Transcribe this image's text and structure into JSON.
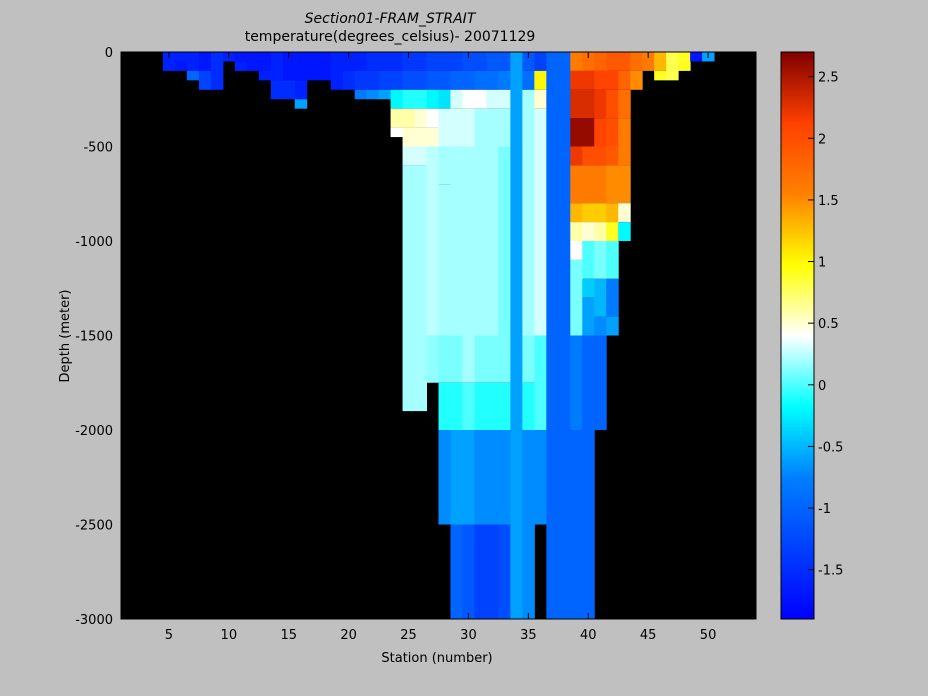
{
  "chart_data": {
    "type": "heatmap",
    "title": "Section01-FRAM_STRAIT",
    "subtitle": "temperature(degrees_celsius)- 20071129",
    "xlabel": "Station (number)",
    "ylabel": "Depth (meter)",
    "xlim": [
      1,
      54
    ],
    "ylim": [
      -3000,
      0
    ],
    "xticks": [
      5,
      10,
      15,
      20,
      25,
      30,
      35,
      40,
      45,
      50
    ],
    "yticks": [
      0,
      -500,
      -1000,
      -1500,
      -2000,
      -2500,
      -3000
    ],
    "colorbar": {
      "range": [
        -1.9,
        2.7
      ],
      "ticks": [
        2.5,
        2,
        1.5,
        1,
        0.5,
        0,
        -0.5,
        -1,
        -1.5
      ],
      "colormap": "jet"
    },
    "background_color": "#000000",
    "cell_height_m": 50,
    "columns": [
      {
        "x": 5,
        "top": 0,
        "segments": [
          [
            0,
            100,
            -1.6
          ]
        ]
      },
      {
        "x": 6,
        "top": 0,
        "segments": [
          [
            0,
            50,
            -1.6
          ],
          [
            50,
            100,
            -1.7
          ]
        ]
      },
      {
        "x": 7,
        "top": 0,
        "segments": [
          [
            0,
            100,
            -1.6
          ],
          [
            100,
            150,
            -1.0
          ]
        ]
      },
      {
        "x": 8,
        "top": 0,
        "segments": [
          [
            0,
            100,
            -1.7
          ],
          [
            100,
            200,
            -1.3
          ]
        ]
      },
      {
        "x": 9,
        "top": 0,
        "segments": [
          [
            0,
            200,
            -1.5
          ]
        ]
      },
      {
        "x": 10,
        "top": 0,
        "segments": [
          [
            0,
            50,
            -1.6
          ]
        ]
      },
      {
        "x": 11,
        "top": 0,
        "segments": [
          [
            0,
            50,
            -1.7
          ],
          [
            50,
            100,
            -1.6
          ]
        ]
      },
      {
        "x": 12,
        "top": 0,
        "segments": [
          [
            0,
            100,
            -1.7
          ]
        ]
      },
      {
        "x": 13,
        "top": 0,
        "segments": [
          [
            0,
            100,
            -1.7
          ],
          [
            100,
            150,
            -1.6
          ]
        ]
      },
      {
        "x": 14,
        "top": 0,
        "segments": [
          [
            0,
            150,
            -1.6
          ],
          [
            150,
            250,
            -1.5
          ]
        ]
      },
      {
        "x": 15,
        "top": 0,
        "segments": [
          [
            0,
            150,
            -1.7
          ],
          [
            150,
            250,
            -1.5
          ]
        ]
      },
      {
        "x": 16,
        "top": 0,
        "segments": [
          [
            0,
            150,
            -1.7
          ],
          [
            150,
            250,
            -1.6
          ],
          [
            250,
            300,
            -0.6
          ]
        ]
      },
      {
        "x": 17,
        "top": 0,
        "segments": [
          [
            0,
            150,
            -1.7
          ]
        ]
      },
      {
        "x": 18,
        "top": 0,
        "segments": [
          [
            0,
            150,
            -1.7
          ]
        ]
      },
      {
        "x": 19,
        "top": 0,
        "segments": [
          [
            0,
            200,
            -1.6
          ]
        ]
      },
      {
        "x": 20,
        "top": 0,
        "segments": [
          [
            0,
            100,
            -1.6
          ],
          [
            100,
            200,
            -1.5
          ]
        ]
      },
      {
        "x": 21,
        "top": 0,
        "segments": [
          [
            0,
            100,
            -1.6
          ],
          [
            100,
            200,
            -1.4
          ],
          [
            200,
            250,
            -0.8
          ]
        ]
      },
      {
        "x": 22,
        "top": 0,
        "segments": [
          [
            0,
            100,
            -1.5
          ],
          [
            100,
            200,
            -1.4
          ],
          [
            200,
            250,
            -0.7
          ]
        ]
      },
      {
        "x": 23,
        "top": 0,
        "segments": [
          [
            0,
            100,
            -1.5
          ],
          [
            100,
            200,
            -1.3
          ],
          [
            200,
            250,
            -0.6
          ]
        ]
      },
      {
        "x": 24,
        "top": 0,
        "segments": [
          [
            0,
            100,
            -1.5
          ],
          [
            100,
            200,
            -1.3
          ],
          [
            200,
            300,
            -0.2
          ],
          [
            300,
            400,
            0.6
          ],
          [
            400,
            450,
            0.4
          ]
        ]
      },
      {
        "x": 25,
        "top": 0,
        "segments": [
          [
            0,
            100,
            -1.4
          ],
          [
            100,
            200,
            -1.2
          ],
          [
            200,
            300,
            -0.1
          ],
          [
            300,
            400,
            0.6
          ],
          [
            400,
            500,
            0.5
          ],
          [
            500,
            600,
            0.3
          ],
          [
            600,
            1900,
            0.2
          ]
        ]
      },
      {
        "x": 26,
        "top": 0,
        "segments": [
          [
            0,
            100,
            -1.4
          ],
          [
            100,
            200,
            -1.2
          ],
          [
            200,
            300,
            -0.1
          ],
          [
            300,
            400,
            0.5
          ],
          [
            400,
            500,
            0.5
          ],
          [
            500,
            600,
            0.3
          ],
          [
            600,
            1900,
            0.2
          ]
        ]
      },
      {
        "x": 27,
        "top": 0,
        "segments": [
          [
            0,
            100,
            -1.3
          ],
          [
            100,
            200,
            -1.1
          ],
          [
            200,
            300,
            -0.2
          ],
          [
            300,
            400,
            0.4
          ],
          [
            400,
            500,
            0.5
          ],
          [
            500,
            1500,
            0.25
          ],
          [
            1500,
            1750,
            0.15
          ]
        ]
      },
      {
        "x": 28,
        "top": 0,
        "segments": [
          [
            0,
            100,
            -1.3
          ],
          [
            100,
            200,
            -1.1
          ],
          [
            200,
            300,
            -0.3
          ],
          [
            300,
            500,
            0.3
          ],
          [
            500,
            700,
            0.2
          ],
          [
            700,
            1500,
            0.2
          ],
          [
            1500,
            1750,
            0.1
          ],
          [
            1750,
            2000,
            -0.1
          ],
          [
            2000,
            2500,
            -0.7
          ]
        ]
      },
      {
        "x": 29,
        "top": 0,
        "segments": [
          [
            0,
            100,
            -1.3
          ],
          [
            100,
            200,
            -1.0
          ],
          [
            200,
            300,
            0.3
          ],
          [
            300,
            500,
            0.3
          ],
          [
            500,
            1500,
            0.2
          ],
          [
            1500,
            1750,
            0.1
          ],
          [
            1750,
            2000,
            -0.1
          ],
          [
            2000,
            2500,
            -0.6
          ],
          [
            2500,
            3000,
            -1.0
          ]
        ]
      },
      {
        "x": 30,
        "top": 0,
        "segments": [
          [
            0,
            100,
            -1.2
          ],
          [
            100,
            200,
            -1.0
          ],
          [
            200,
            300,
            0.4
          ],
          [
            300,
            500,
            0.3
          ],
          [
            500,
            1500,
            0.3
          ],
          [
            500,
            1750,
            0.2
          ],
          [
            1750,
            2000,
            0.0
          ],
          [
            2000,
            2500,
            -0.6
          ],
          [
            2500,
            3000,
            -1.1
          ]
        ]
      },
      {
        "x": 31,
        "top": 0,
        "segments": [
          [
            0,
            100,
            -1.2
          ],
          [
            100,
            200,
            -0.9
          ],
          [
            200,
            300,
            0.4
          ],
          [
            300,
            500,
            0.2
          ],
          [
            500,
            1500,
            0.2
          ],
          [
            1500,
            1750,
            0.1
          ],
          [
            1750,
            2000,
            -0.1
          ],
          [
            2000,
            2500,
            -0.7
          ],
          [
            2500,
            3000,
            -1.3
          ]
        ]
      },
      {
        "x": 32,
        "top": 0,
        "segments": [
          [
            0,
            100,
            -1.1
          ],
          [
            100,
            200,
            -0.9
          ],
          [
            200,
            300,
            0.3
          ],
          [
            300,
            500,
            0.2
          ],
          [
            500,
            1500,
            0.2
          ],
          [
            1500,
            1750,
            0.1
          ],
          [
            1750,
            2000,
            -0.1
          ],
          [
            2000,
            2500,
            -0.7
          ],
          [
            2500,
            3000,
            -1.3
          ]
        ]
      },
      {
        "x": 33,
        "top": 0,
        "segments": [
          [
            0,
            100,
            -1.1
          ],
          [
            100,
            200,
            -0.8
          ],
          [
            200,
            300,
            0.3
          ],
          [
            300,
            500,
            0.2
          ],
          [
            500,
            1500,
            0.1
          ],
          [
            1500,
            1750,
            0.1
          ],
          [
            1750,
            2000,
            -0.1
          ],
          [
            2000,
            2500,
            -0.7
          ],
          [
            2500,
            3000,
            -1.2
          ]
        ]
      },
      {
        "x": 34,
        "top": 0,
        "segments": [
          [
            0,
            3000,
            -0.6
          ]
        ]
      },
      {
        "x": 35,
        "top": 0,
        "segments": [
          [
            0,
            100,
            -1.1
          ],
          [
            100,
            200,
            -0.9
          ],
          [
            200,
            1500,
            0.2
          ],
          [
            1500,
            1750,
            0.1
          ],
          [
            1750,
            2000,
            -0.1
          ],
          [
            2000,
            2500,
            -0.7
          ],
          [
            2500,
            3000,
            -0.7
          ]
        ]
      },
      {
        "x": 36,
        "top": 0,
        "segments": [
          [
            0,
            100,
            -1.3
          ],
          [
            100,
            200,
            1.0
          ],
          [
            200,
            300,
            0.5
          ],
          [
            300,
            1500,
            0.3
          ],
          [
            1500,
            2000,
            0.0
          ],
          [
            2000,
            2500,
            -0.7
          ]
        ]
      },
      {
        "x": 37,
        "top": 0,
        "segments": [
          [
            0,
            3000,
            -1.0
          ]
        ]
      },
      {
        "x": 38,
        "top": 0,
        "segments": [
          [
            0,
            3000,
            -1.0
          ]
        ]
      },
      {
        "x": 39,
        "top": 0,
        "segments": [
          [
            0,
            100,
            1.6
          ],
          [
            100,
            200,
            2.2
          ],
          [
            200,
            350,
            2.3
          ],
          [
            350,
            500,
            2.6
          ],
          [
            500,
            600,
            2.2
          ],
          [
            600,
            800,
            1.6
          ],
          [
            800,
            900,
            1.3
          ],
          [
            900,
            1000,
            0.6
          ],
          [
            1000,
            1100,
            0.4
          ],
          [
            1100,
            1500,
            0.1
          ],
          [
            1500,
            2000,
            -0.8
          ],
          [
            2000,
            3000,
            -1.0
          ]
        ]
      },
      {
        "x": 40,
        "top": 0,
        "segments": [
          [
            0,
            100,
            1.7
          ],
          [
            100,
            200,
            2.2
          ],
          [
            200,
            350,
            2.3
          ],
          [
            350,
            500,
            2.6
          ],
          [
            500,
            600,
            2.0
          ],
          [
            600,
            800,
            1.6
          ],
          [
            800,
            900,
            1.2
          ],
          [
            900,
            1000,
            0.5
          ],
          [
            1000,
            1200,
            0.0
          ],
          [
            1200,
            1300,
            -0.4
          ],
          [
            1300,
            1500,
            -0.6
          ],
          [
            1500,
            2000,
            -1.0
          ],
          [
            2000,
            3000,
            -1.0
          ]
        ]
      },
      {
        "x": 41,
        "top": 0,
        "segments": [
          [
            0,
            100,
            1.8
          ],
          [
            100,
            200,
            2.1
          ],
          [
            200,
            350,
            2.2
          ],
          [
            350,
            500,
            2.1
          ],
          [
            500,
            600,
            2.0
          ],
          [
            600,
            800,
            1.6
          ],
          [
            800,
            900,
            1.2
          ],
          [
            900,
            1000,
            0.6
          ],
          [
            1000,
            1200,
            0.1
          ],
          [
            1200,
            1400,
            -0.5
          ],
          [
            1400,
            1500,
            -0.7
          ],
          [
            1500,
            2000,
            -1.0
          ]
        ]
      },
      {
        "x": 42,
        "top": 0,
        "segments": [
          [
            0,
            100,
            1.9
          ],
          [
            100,
            200,
            2.1
          ],
          [
            200,
            350,
            2.0
          ],
          [
            350,
            500,
            2.0
          ],
          [
            500,
            600,
            1.9
          ],
          [
            600,
            800,
            1.5
          ],
          [
            800,
            900,
            1.3
          ],
          [
            900,
            1000,
            0.9
          ],
          [
            1000,
            1200,
            0.0
          ],
          [
            1200,
            1400,
            -0.8
          ],
          [
            1400,
            1500,
            -0.6
          ]
        ]
      },
      {
        "x": 43,
        "top": 0,
        "segments": [
          [
            0,
            100,
            1.9
          ],
          [
            100,
            200,
            1.8
          ],
          [
            200,
            350,
            1.7
          ],
          [
            350,
            500,
            1.6
          ],
          [
            500,
            600,
            1.6
          ],
          [
            600,
            800,
            1.5
          ],
          [
            800,
            900,
            0.5
          ],
          [
            900,
            1000,
            -0.2
          ]
        ]
      },
      {
        "x": 44,
        "top": 0,
        "segments": [
          [
            0,
            100,
            1.7
          ],
          [
            100,
            200,
            1.5
          ]
        ]
      },
      {
        "x": 45,
        "top": 0,
        "segments": [
          [
            0,
            100,
            1.6
          ]
        ]
      },
      {
        "x": 46,
        "top": 0,
        "segments": [
          [
            0,
            100,
            1.3
          ],
          [
            100,
            150,
            0.9
          ]
        ]
      },
      {
        "x": 47,
        "top": 0,
        "segments": [
          [
            0,
            150,
            0.8
          ]
        ]
      },
      {
        "x": 48,
        "top": 0,
        "segments": [
          [
            0,
            100,
            0.9
          ]
        ]
      },
      {
        "x": 49,
        "top": 0,
        "segments": [
          [
            0,
            50,
            -1.7
          ]
        ]
      },
      {
        "x": 50,
        "top": 0,
        "segments": [
          [
            0,
            50,
            -0.6
          ]
        ]
      }
    ]
  }
}
